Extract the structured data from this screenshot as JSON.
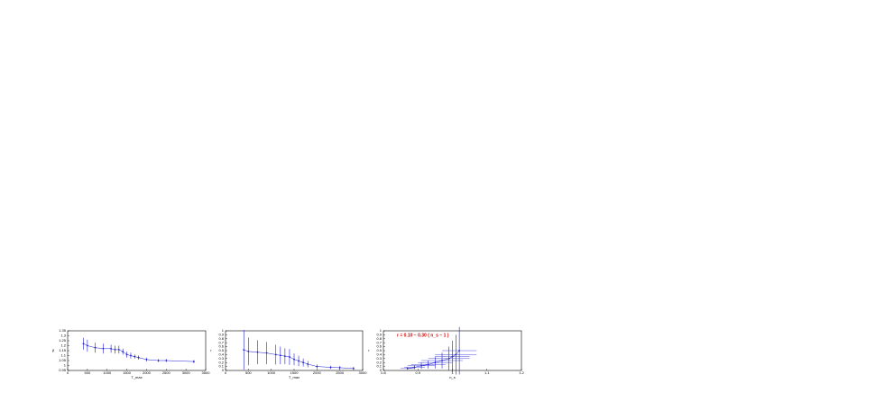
{
  "chart_data": [
    {
      "type": "errorbar",
      "x_label": "T_max",
      "y_label": "β",
      "color": "#1f1fd0",
      "x": [
        400,
        500,
        700,
        900,
        1100,
        1200,
        1300,
        1400,
        1500,
        1600,
        1700,
        1800,
        2000,
        2300,
        2500,
        3200
      ],
      "values": [
        1.22,
        1.2,
        1.18,
        1.17,
        1.17,
        1.16,
        1.16,
        1.14,
        1.11,
        1.1,
        1.09,
        1.08,
        1.06,
        1.05,
        1.05,
        1.04
      ],
      "errors": [
        0.06,
        0.06,
        0.05,
        0.05,
        0.04,
        0.04,
        0.04,
        0.03,
        0.03,
        0.03,
        0.02,
        0.02,
        0.02,
        0.015,
        0.015,
        0.015
      ],
      "xlim": [
        0,
        3500
      ],
      "xticks": [
        0,
        500,
        1000,
        1500,
        2000,
        2500,
        3000,
        3500
      ],
      "ylim": [
        0.95,
        1.35
      ],
      "yticks": [
        0.95,
        1,
        1.05,
        1.1,
        1.15,
        1.2,
        1.25,
        1.3,
        1.35
      ]
    },
    {
      "type": "errorbar",
      "x_label": "T_max",
      "y_label": "r",
      "color": "#1f1fd0",
      "x": [
        400,
        500,
        700,
        900,
        1100,
        1200,
        1300,
        1400,
        1500,
        1600,
        1700,
        1800,
        2000,
        2300,
        2500,
        2800
      ],
      "values": [
        0.52,
        0.48,
        0.46,
        0.44,
        0.4,
        0.38,
        0.36,
        0.34,
        0.28,
        0.24,
        0.2,
        0.16,
        0.1,
        0.08,
        0.07,
        0.05
      ],
      "errors": [
        0.5,
        0.35,
        0.3,
        0.28,
        0.25,
        0.22,
        0.2,
        0.2,
        0.15,
        0.13,
        0.1,
        0.08,
        0.05,
        0.04,
        0.04,
        0.04
      ],
      "xlim": [
        0,
        3000
      ],
      "xticks": [
        0,
        500,
        1000,
        1500,
        2000,
        2500,
        3000
      ],
      "ylim": [
        0,
        1
      ],
      "yticks": [
        0,
        0.1,
        0.2,
        0.3,
        0.4,
        0.5,
        0.6,
        0.7,
        0.8,
        0.9,
        1
      ]
    },
    {
      "type": "errorbar",
      "x_label": "n_s",
      "y_label": "r",
      "color": "#1f1fd0",
      "annotation": "r = 0.10 − 0.30 ( n_s − 1 )",
      "x": [
        0.87,
        0.89,
        0.91,
        0.93,
        0.95,
        0.97,
        0.99,
        1.0,
        1.01,
        1.02
      ],
      "values": [
        0.05,
        0.08,
        0.12,
        0.15,
        0.2,
        0.25,
        0.3,
        0.35,
        0.4,
        0.5
      ],
      "errors": [
        0.03,
        0.05,
        0.08,
        0.1,
        0.15,
        0.2,
        0.3,
        0.4,
        0.5,
        0.6
      ],
      "x_errors": [
        0.02,
        0.03,
        0.04,
        0.05,
        0.05,
        0.06,
        0.06,
        0.05,
        0.06,
        0.05
      ],
      "xlim": [
        0.8,
        1.2
      ],
      "xticks": [
        0.8,
        0.9,
        1,
        1.1,
        1.2
      ],
      "ylim": [
        0,
        1
      ],
      "yticks": [
        0,
        0.1,
        0.2,
        0.3,
        0.4,
        0.5,
        0.6,
        0.7,
        0.8,
        0.9,
        1
      ]
    }
  ]
}
